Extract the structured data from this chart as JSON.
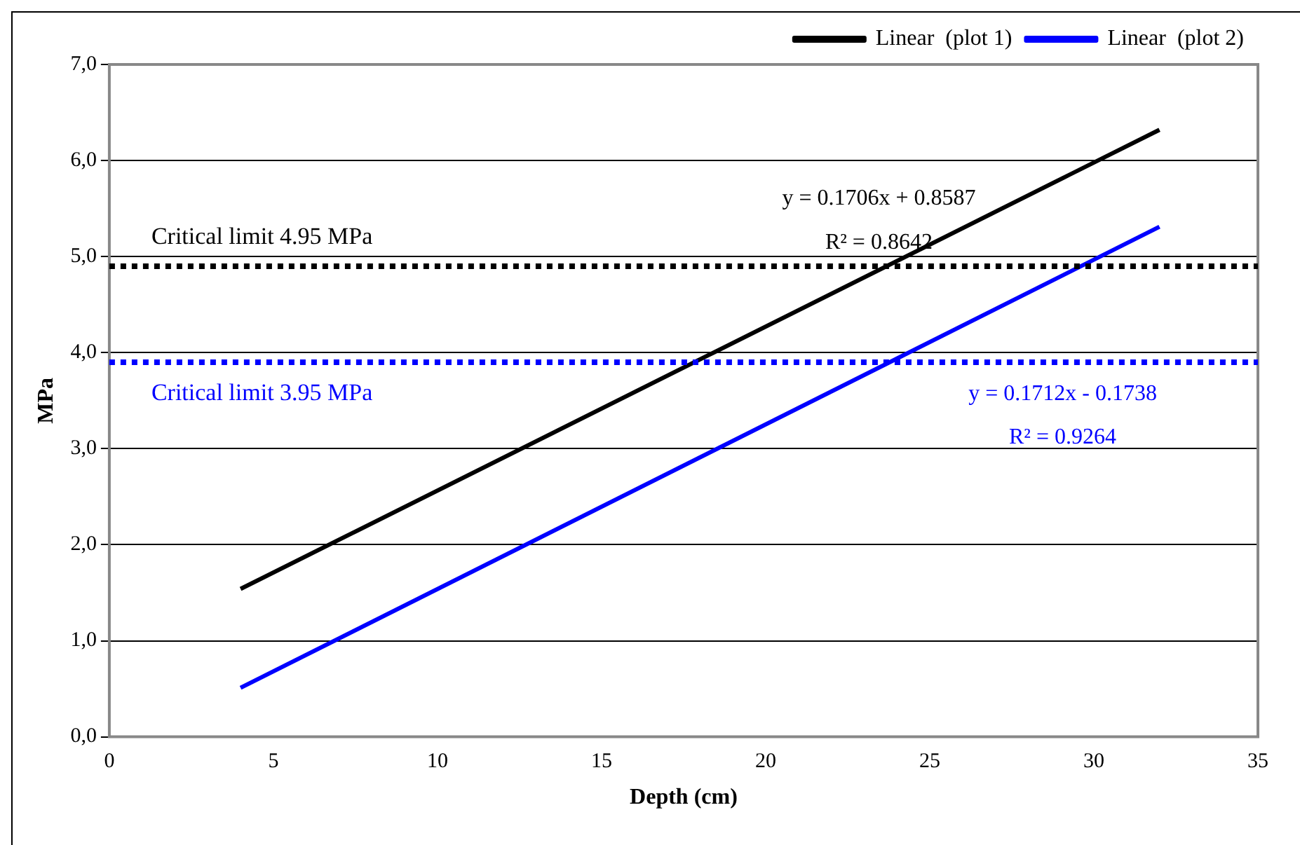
{
  "chart_data": {
    "type": "line",
    "xlabel": "Depth (cm)",
    "ylabel": "MPa",
    "x": [
      4,
      32
    ],
    "series": [
      {
        "name": "Linear  (plot 1)",
        "color": "#000000",
        "values": [
          1.54,
          6.32
        ]
      },
      {
        "name": "Linear  (plot 2)",
        "color": "#0000ff",
        "values": [
          0.51,
          5.31
        ]
      }
    ],
    "xlim": [
      0,
      35
    ],
    "xticks": [
      0,
      5,
      10,
      15,
      20,
      25,
      30,
      35
    ],
    "ylim": [
      0,
      7
    ],
    "yticks": [
      {
        "value": 0,
        "label": "0,0"
      },
      {
        "value": 1,
        "label": "1,0"
      },
      {
        "value": 2,
        "label": "2,0"
      },
      {
        "value": 3,
        "label": "3,0"
      },
      {
        "value": 4,
        "label": "4,0"
      },
      {
        "value": 5,
        "label": "5,0"
      },
      {
        "value": 6,
        "label": "6,0"
      },
      {
        "value": 7,
        "label": "7,0"
      }
    ],
    "ref_lines": [
      {
        "axis": "y",
        "value": 4.9,
        "label": "Critical limit 4.95 MPa",
        "color": "#000000",
        "line_style": "dotted"
      },
      {
        "axis": "y",
        "value": 3.9,
        "label": "Critical limit 3.95 MPa",
        "color": "#0000ff",
        "line_style": "dotted"
      }
    ],
    "annotations": [
      "y = 0.1706x + 0.8587",
      "R² = 0.8642",
      "y = 0.1712x - 0.1738",
      "R² = 0.9264"
    ],
    "grid": "y",
    "legend": "top right",
    "marker": "none",
    "line_style": "solid"
  }
}
